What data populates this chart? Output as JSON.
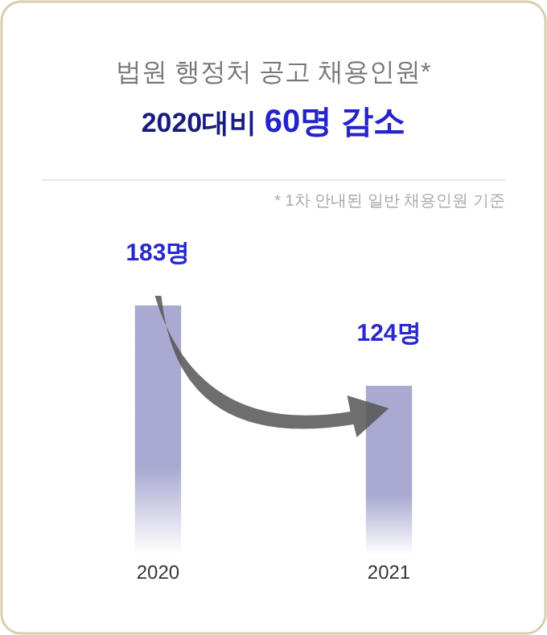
{
  "chart_data": {
    "type": "bar",
    "title": "법원 행정처 공고 채용인원*",
    "subtitle": "2020대비 60명 감소",
    "annotations": [
      "* 1차 안내된 일반 채용인원 기준"
    ],
    "categories": [
      "2020",
      "2021"
    ],
    "values": [
      183,
      124
    ],
    "color": "#a9a9d2",
    "value_labels": [
      "183명",
      "124명"
    ],
    "tick_labels": "x"
  }
}
